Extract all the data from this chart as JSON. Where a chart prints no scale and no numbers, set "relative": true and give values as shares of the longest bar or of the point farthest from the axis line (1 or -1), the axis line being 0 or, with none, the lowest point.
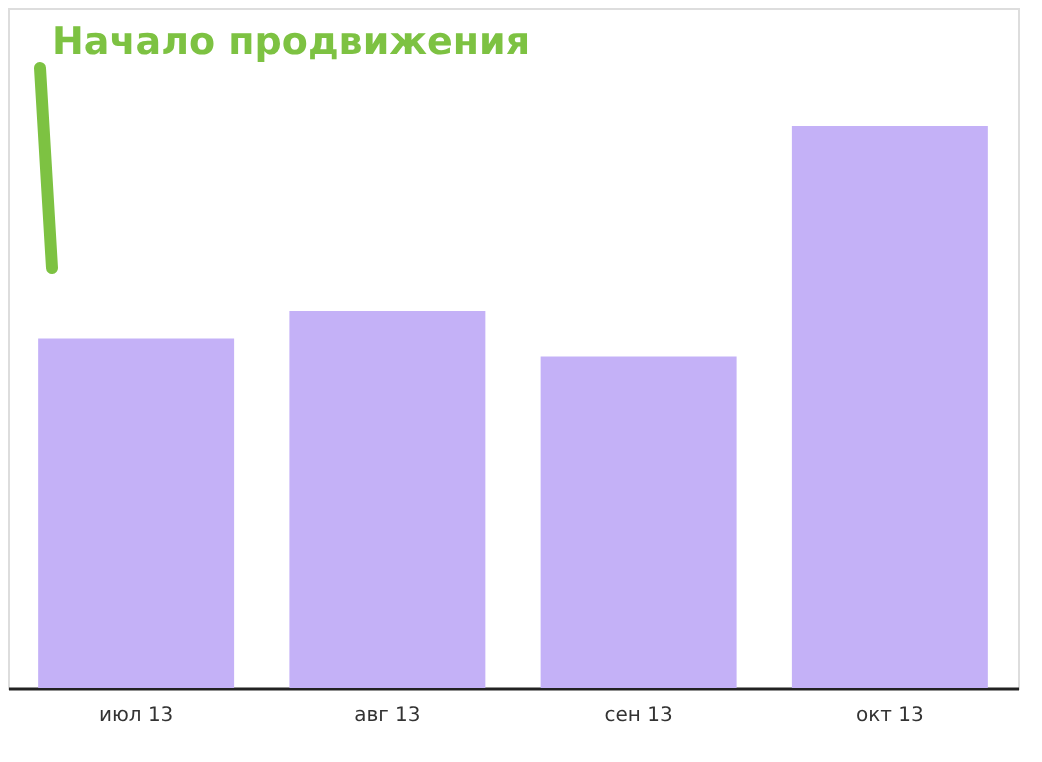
{
  "chart_data": {
    "type": "bar",
    "relative": true,
    "categories": [
      "июл 13",
      "авг 13",
      "сен 13",
      "окт 13"
    ],
    "values": [
      0.622,
      0.671,
      0.59,
      1
    ],
    "color": "#c4b1f7",
    "annotations": [
      "Начало продвижения"
    ]
  }
}
